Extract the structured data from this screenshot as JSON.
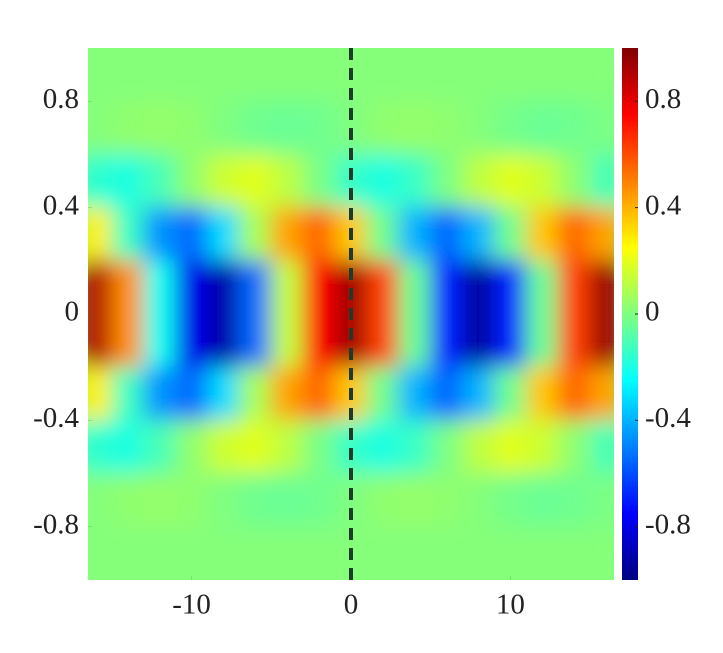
{
  "chart_data": {
    "type": "heatmap",
    "colormap": "jet",
    "x": [
      -16,
      -14,
      -12,
      -10,
      -8,
      -6,
      -4,
      -2,
      0,
      2,
      4,
      6,
      8,
      10,
      12,
      14,
      16
    ],
    "y": [
      0.9,
      0.7,
      0.5,
      0.3,
      0.1,
      -0.1,
      -0.3,
      -0.5,
      -0.7,
      -0.9
    ],
    "z": [
      [
        0.01,
        0.01,
        0.01,
        0.01,
        0.01,
        0.01,
        0.01,
        0.01,
        0.01,
        0.01,
        0.01,
        0.01,
        0.01,
        0.01,
        0.01,
        0.01,
        0.01
      ],
      [
        0.01,
        0.03,
        0.04,
        0.03,
        0,
        -0.03,
        -0.04,
        -0.03,
        0,
        0.03,
        0.04,
        0.03,
        0.01,
        -0.02,
        -0.04,
        -0.03,
        -0.01
      ],
      [
        -0.16,
        -0.19,
        -0.11,
        0.03,
        0.15,
        0.19,
        0.12,
        -0.01,
        -0.14,
        -0.19,
        -0.14,
        -0.01,
        0.12,
        0.19,
        0.15,
        0.03,
        -0.11
      ],
      [
        0.28,
        -0.13,
        -0.46,
        -0.54,
        -0.32,
        0.08,
        0.43,
        0.55,
        0.36,
        -0.03,
        -0.4,
        -0.55,
        -0.4,
        -0.03,
        0.36,
        0.55,
        0.43
      ],
      [
        0.9,
        0.47,
        -0.22,
        -0.79,
        -0.92,
        -0.54,
        0.13,
        0.74,
        0.94,
        0.62,
        -0.04,
        -0.68,
        -0.94,
        -0.68,
        -0.04,
        0.62,
        0.94
      ],
      [
        0.9,
        0.47,
        -0.22,
        -0.79,
        -0.92,
        -0.54,
        0.13,
        0.74,
        0.94,
        0.62,
        -0.04,
        -0.68,
        -0.94,
        -0.68,
        -0.04,
        0.62,
        0.94
      ],
      [
        0.28,
        -0.13,
        -0.46,
        -0.54,
        -0.32,
        0.08,
        0.43,
        0.55,
        0.36,
        -0.03,
        -0.4,
        -0.55,
        -0.4,
        -0.03,
        0.36,
        0.55,
        0.43
      ],
      [
        -0.16,
        -0.19,
        -0.11,
        0.03,
        0.15,
        0.19,
        0.12,
        -0.01,
        -0.14,
        -0.19,
        -0.14,
        -0.01,
        0.12,
        0.19,
        0.15,
        0.03,
        -0.11
      ],
      [
        0.01,
        0.03,
        0.04,
        0.03,
        0,
        -0.03,
        -0.04,
        -0.03,
        0,
        0.03,
        0.04,
        0.03,
        0.01,
        -0.02,
        -0.04,
        -0.03,
        -0.01
      ],
      [
        0.01,
        0.01,
        0.01,
        0.01,
        0.01,
        0.01,
        0.01,
        0.01,
        0.01,
        0.01,
        0.01,
        0.01,
        0.01,
        0.01,
        0.01,
        0.01,
        0.01
      ]
    ],
    "xlim": [
      -16.5,
      16.5
    ],
    "ylim": [
      -1,
      1
    ],
    "xticks": [
      -10,
      0,
      10
    ],
    "yticks": [
      -0.8,
      -0.4,
      0,
      0.4,
      0.8
    ],
    "zlim": [
      -1,
      1
    ],
    "zticks": [
      -0.8,
      -0.4,
      0,
      0.4,
      0.8
    ],
    "vline": {
      "x": 0,
      "color": "#1f3a2a",
      "style": "dashed"
    }
  }
}
